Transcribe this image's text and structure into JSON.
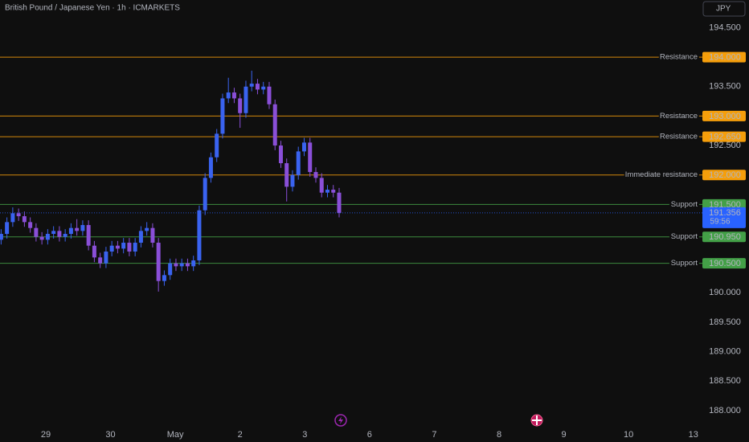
{
  "chart_data": {
    "type": "candlestick",
    "title": "British Pound / Japanese Yen · 1h · ICMARKETS",
    "currency": "JPY",
    "x": [
      0.31,
      0.4,
      0.49,
      0.58,
      0.67,
      0.76,
      0.85,
      0.94,
      1.03,
      1.12,
      1.21,
      1.3,
      1.39,
      1.48,
      1.57,
      1.66,
      1.75,
      1.84,
      1.93,
      2.02,
      2.11,
      2.2,
      2.29,
      2.38,
      2.47,
      2.56,
      2.65,
      2.74,
      2.83,
      2.92,
      3.01,
      3.1,
      3.19,
      3.28,
      3.37,
      3.46,
      3.55,
      3.64,
      3.73,
      3.82,
      3.91,
      4.0,
      4.09,
      4.18,
      4.27,
      4.36,
      4.45,
      4.54,
      4.63,
      4.72,
      4.81,
      4.9,
      4.99,
      5.08,
      5.17,
      5.26,
      5.35,
      5.44,
      5.53
    ],
    "open": [
      190.9,
      191.0,
      191.2,
      191.35,
      191.3,
      191.2,
      191.1,
      190.95,
      190.9,
      191.0,
      191.05,
      190.95,
      191.0,
      191.1,
      191.05,
      191.15,
      190.8,
      190.6,
      190.5,
      190.7,
      190.8,
      190.75,
      190.85,
      190.7,
      190.85,
      191.05,
      191.1,
      190.85,
      190.2,
      190.3,
      190.5,
      190.45,
      190.5,
      190.45,
      190.55,
      191.4,
      191.95,
      192.3,
      192.7,
      193.3,
      193.4,
      193.3,
      193.05,
      193.5,
      193.55,
      193.45,
      193.5,
      193.2,
      192.5,
      192.2,
      191.8,
      192.0,
      192.4,
      192.55,
      192.05,
      191.95,
      191.7,
      191.75,
      191.7
    ],
    "high": [
      191.08,
      191.28,
      191.45,
      191.43,
      191.38,
      191.28,
      191.18,
      191.03,
      191.08,
      191.13,
      191.13,
      191.08,
      191.18,
      191.25,
      191.23,
      191.23,
      190.88,
      190.68,
      190.78,
      190.88,
      190.88,
      190.93,
      190.93,
      190.93,
      191.13,
      191.2,
      191.18,
      190.93,
      190.38,
      190.58,
      190.58,
      190.58,
      190.58,
      190.63,
      191.48,
      192.03,
      192.38,
      192.78,
      193.38,
      193.65,
      193.48,
      193.38,
      193.6,
      193.77,
      193.63,
      193.58,
      193.58,
      193.28,
      192.58,
      192.28,
      192.08,
      192.48,
      192.63,
      192.63,
      192.13,
      192.03,
      191.83,
      191.83,
      191.78
    ],
    "low": [
      190.82,
      190.92,
      191.12,
      191.22,
      191.12,
      191.02,
      190.87,
      190.82,
      190.82,
      190.92,
      190.87,
      190.87,
      190.92,
      190.97,
      190.97,
      190.72,
      190.52,
      190.42,
      190.42,
      190.62,
      190.67,
      190.67,
      190.62,
      190.62,
      190.77,
      190.97,
      190.77,
      190.02,
      190.12,
      190.22,
      190.37,
      190.37,
      190.37,
      190.37,
      190.47,
      191.32,
      191.87,
      192.22,
      192.62,
      193.22,
      193.22,
      192.8,
      192.97,
      193.42,
      193.37,
      193.37,
      193.12,
      192.42,
      192.12,
      191.55,
      191.72,
      191.92,
      192.32,
      191.97,
      191.87,
      191.62,
      191.62,
      191.62,
      191.28
    ],
    "close": [
      191.0,
      191.2,
      191.35,
      191.3,
      191.2,
      191.1,
      190.95,
      190.9,
      191.0,
      191.05,
      190.95,
      191.0,
      191.1,
      191.05,
      191.15,
      190.8,
      190.6,
      190.5,
      190.7,
      190.8,
      190.75,
      190.85,
      190.7,
      190.85,
      191.05,
      191.1,
      190.85,
      190.2,
      190.3,
      190.5,
      190.45,
      190.5,
      190.45,
      190.55,
      191.4,
      191.95,
      192.3,
      192.7,
      193.3,
      193.4,
      193.3,
      193.05,
      193.5,
      193.55,
      193.45,
      193.5,
      193.2,
      192.5,
      192.2,
      191.8,
      192.0,
      192.4,
      192.55,
      192.05,
      191.95,
      191.7,
      191.75,
      191.7,
      191.356
    ],
    "up_color": "#3a63f0",
    "down_color": "#8a4fd8",
    "xlim": [
      0.293,
      11.09
    ],
    "xticks": [
      {
        "value": 1,
        "label": "29"
      },
      {
        "value": 2,
        "label": "30"
      },
      {
        "value": 3,
        "label": "May"
      },
      {
        "value": 4,
        "label": "2"
      },
      {
        "value": 5,
        "label": "3"
      },
      {
        "value": 6,
        "label": "6"
      },
      {
        "value": 7,
        "label": "7"
      },
      {
        "value": 8,
        "label": "8"
      },
      {
        "value": 9,
        "label": "9"
      },
      {
        "value": 10,
        "label": "10"
      },
      {
        "value": 11,
        "label": "13"
      }
    ],
    "ylim": [
      187.74,
      194.97
    ],
    "yticks": [
      {
        "value": 194.5,
        "label": "194.500"
      },
      {
        "value": 193.5,
        "label": "193.500"
      },
      {
        "value": 192.5,
        "label": "192.500"
      },
      {
        "value": 190,
        "label": "190.000"
      },
      {
        "value": 189.5,
        "label": "189.500"
      },
      {
        "value": 189,
        "label": "189.000"
      },
      {
        "value": 188.5,
        "label": "188.500"
      },
      {
        "value": 188,
        "label": "188.000"
      }
    ],
    "grid": false,
    "levels": [
      {
        "name": "Resistance",
        "value": 194,
        "value_label": "194.000",
        "color": "#f59e0b"
      },
      {
        "name": "Resistance",
        "value": 193,
        "value_label": "193.000",
        "color": "#f59e0b"
      },
      {
        "name": "Resistance",
        "value": 192.65,
        "value_label": "192.650",
        "color": "#f59e0b"
      },
      {
        "name": "Immediate resistance",
        "value": 192,
        "value_label": "192.000",
        "color": "#f59e0b"
      },
      {
        "name": "Support",
        "value": 191.5,
        "value_label": "191.500",
        "color": "#43a047"
      },
      {
        "name": "Support",
        "value": 190.95,
        "value_label": "190.950",
        "color": "#43a047"
      },
      {
        "name": "Support",
        "value": 190.5,
        "value_label": "190.500",
        "color": "#43a047"
      }
    ],
    "last_price": {
      "value": 191.356,
      "label": "191.356",
      "countdown": "59:56",
      "color": "#2962ff"
    }
  }
}
